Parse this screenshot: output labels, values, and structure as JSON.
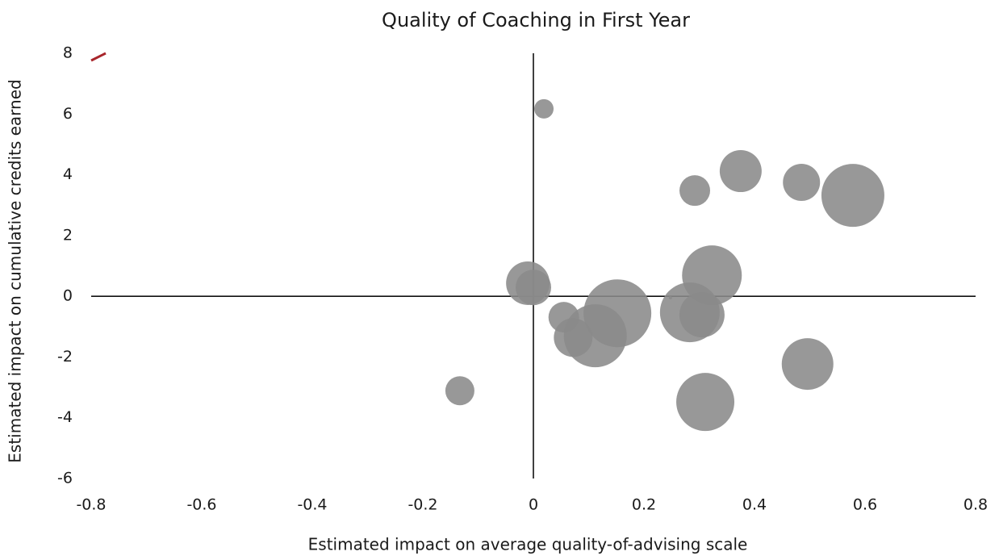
{
  "chart_data": {
    "type": "scatter",
    "title": "Quality of Coaching in First Year",
    "x_label": "Estimated impact on average quality-of-advising scale",
    "y_label": "Estimated impact on cumulative credits earned",
    "color": "#8a8a8a",
    "xlim": [
      -0.8,
      0.8
    ],
    "ylim": [
      -6,
      8
    ],
    "xticks": [
      -0.8,
      -0.6,
      -0.4,
      -0.2,
      0,
      0.2,
      0.4,
      0.6,
      0.8
    ],
    "yticks": [
      -6,
      -4,
      -2,
      0,
      2,
      4,
      6,
      8
    ],
    "x": [
      0.019,
      0.375,
      0.292,
      0.485,
      0.578,
      0.323,
      -0.01,
      0.0,
      0.055,
      0.152,
      0.283,
      0.305,
      0.072,
      0.112,
      0.496,
      0.311,
      -0.133,
      0.248
    ],
    "y": [
      6.17,
      4.12,
      3.48,
      3.75,
      3.32,
      0.69,
      0.43,
      0.29,
      -0.69,
      -0.56,
      -0.53,
      -0.61,
      -1.36,
      -1.3,
      -2.23,
      -3.48,
      -3.11,
      -0.05
    ],
    "sizes": [
      12,
      26,
      19,
      23,
      39,
      37,
      27,
      22,
      19,
      42,
      37,
      28,
      24,
      39,
      32,
      36,
      18,
      2
    ]
  }
}
